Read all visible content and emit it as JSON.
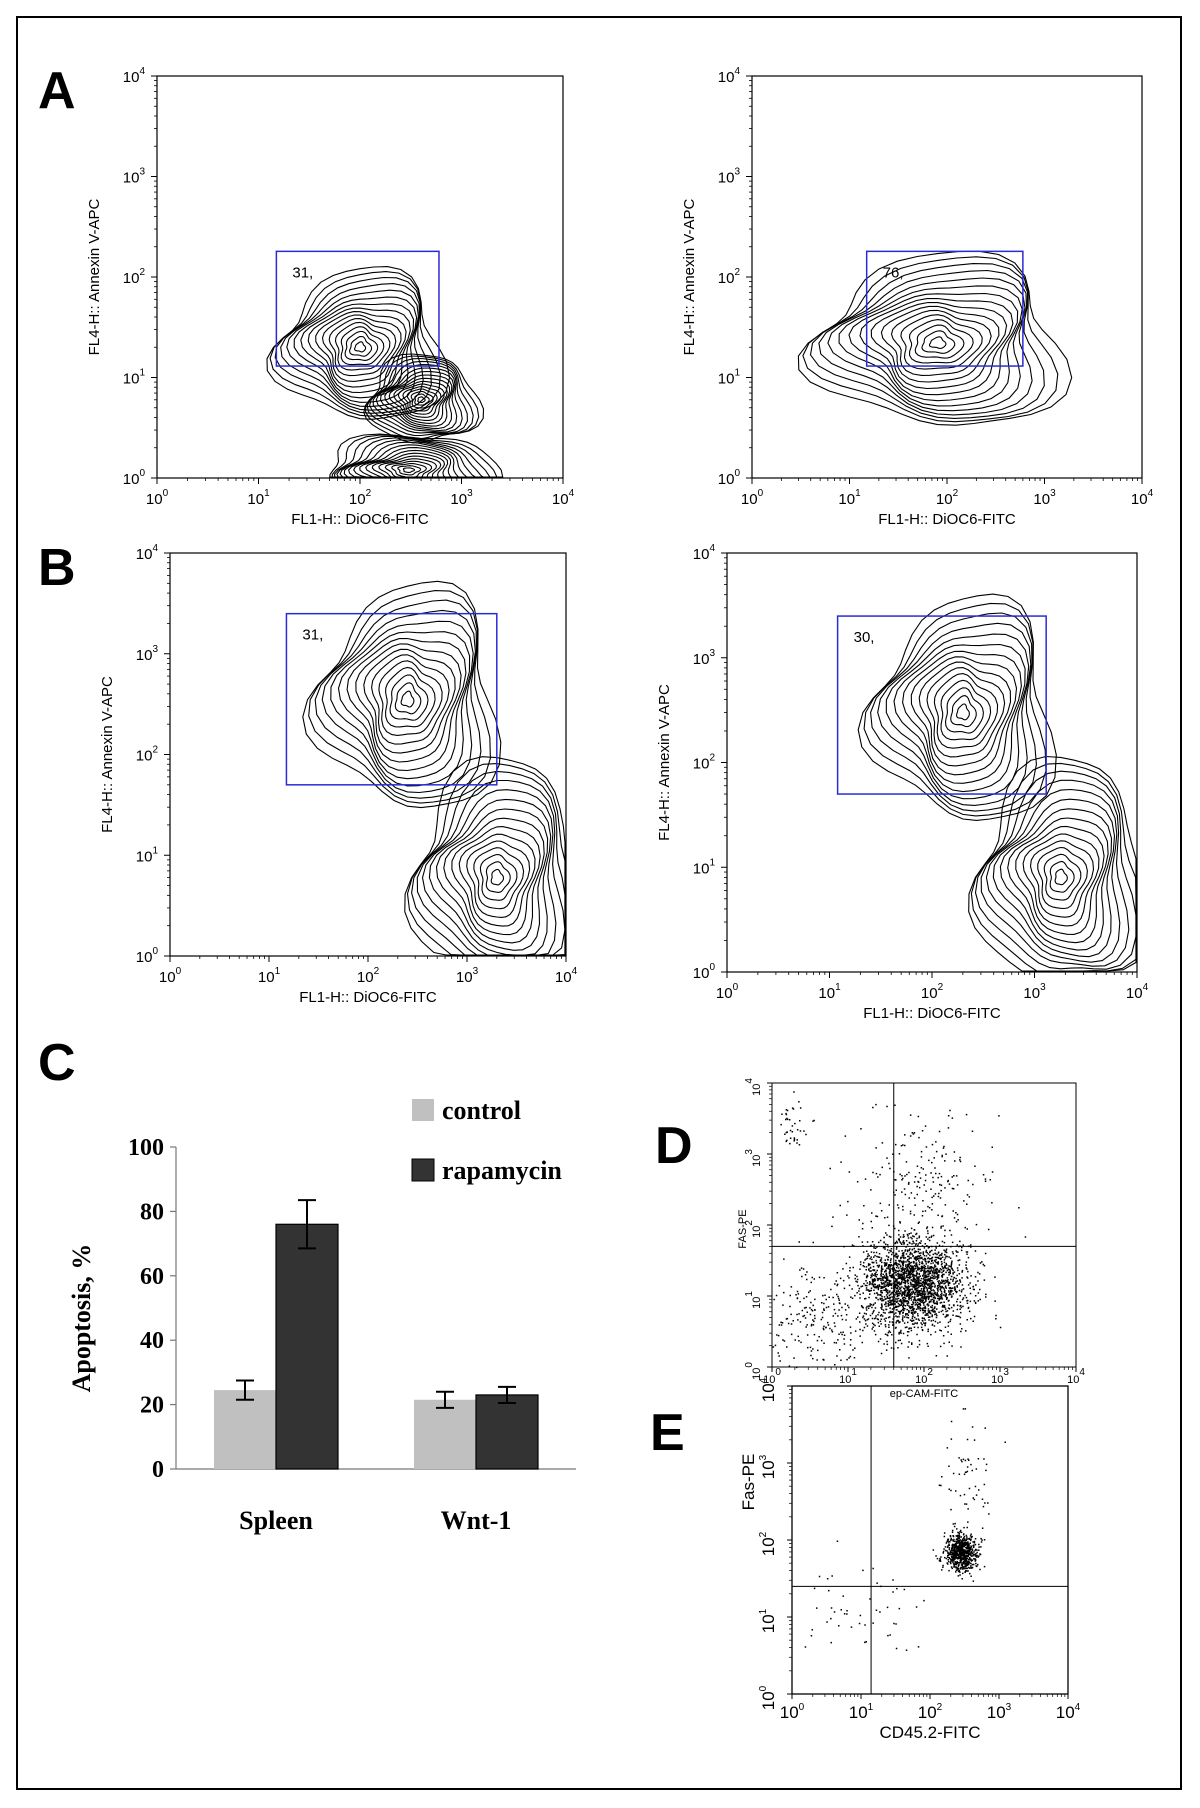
{
  "panel_letters": [
    "A",
    "B",
    "C",
    "D",
    "E"
  ],
  "chart_data": [
    {
      "id": "A-left",
      "type": "scatter",
      "title": "",
      "xlabel": "FL1-H:: DiOC6-FITC",
      "ylabel": "FL4-H:: Annexin V-APC",
      "xscale": "log",
      "yscale": "log",
      "xlim": [
        1,
        10000
      ],
      "ylim": [
        1,
        10000
      ],
      "x_ticks": [
        "10^0",
        "10^1",
        "10^2",
        "10^3",
        "10^4"
      ],
      "y_ticks": [
        "10^0",
        "10^1",
        "10^2",
        "10^3",
        "10^4"
      ],
      "gate": {
        "label": "31,",
        "x_range": [
          15,
          600
        ],
        "y_range": [
          13,
          180
        ]
      },
      "populations": [
        {
          "cx": 100,
          "cy": 20
        },
        {
          "cx": 400,
          "cy": 6
        },
        {
          "cx": 300,
          "cy": 1.2
        }
      ]
    },
    {
      "id": "A-right",
      "type": "scatter",
      "title": "",
      "xlabel": "FL1-H:: DiOC6-FITC",
      "ylabel": "FL4-H:: Annexin V-APC",
      "xscale": "log",
      "yscale": "log",
      "xlim": [
        1,
        10000
      ],
      "ylim": [
        1,
        10000
      ],
      "x_ticks": [
        "10^0",
        "10^1",
        "10^2",
        "10^3",
        "10^4"
      ],
      "y_ticks": [
        "10^0",
        "10^1",
        "10^2",
        "10^3",
        "10^4"
      ],
      "gate": {
        "label": "76,",
        "x_range": [
          15,
          600
        ],
        "y_range": [
          13,
          180
        ]
      },
      "populations": [
        {
          "cx": 80,
          "cy": 22
        }
      ]
    },
    {
      "id": "B-left",
      "type": "scatter",
      "title": "",
      "xlabel": "FL1-H:: DiOC6-FITC",
      "ylabel": "FL4-H:: Annexin V-APC",
      "xscale": "log",
      "yscale": "log",
      "xlim": [
        1,
        10000
      ],
      "ylim": [
        1,
        10000
      ],
      "x_ticks": [
        "10^0",
        "10^1",
        "10^2",
        "10^3",
        "10^4"
      ],
      "y_ticks": [
        "10^0",
        "10^1",
        "10^2",
        "10^3",
        "10^4"
      ],
      "gate": {
        "label": "31,",
        "x_range": [
          15,
          2000
        ],
        "y_range": [
          50,
          2500
        ]
      },
      "populations": [
        {
          "cx": 250,
          "cy": 350
        },
        {
          "cx": 2000,
          "cy": 6
        }
      ]
    },
    {
      "id": "B-right",
      "type": "scatter",
      "title": "",
      "xlabel": "FL1-H:: DiOC6-FITC",
      "ylabel": "FL4-H:: Annexin V-APC",
      "xscale": "log",
      "yscale": "log",
      "xlim": [
        1,
        10000
      ],
      "ylim": [
        1,
        10000
      ],
      "x_ticks": [
        "10^0",
        "10^1",
        "10^2",
        "10^3",
        "10^4"
      ],
      "y_ticks": [
        "10^0",
        "10^1",
        "10^2",
        "10^3",
        "10^4"
      ],
      "gate": {
        "label": "30,",
        "x_range": [
          12,
          1300
        ],
        "y_range": [
          50,
          2500
        ]
      },
      "populations": [
        {
          "cx": 200,
          "cy": 300
        },
        {
          "cx": 1800,
          "cy": 8
        }
      ]
    },
    {
      "id": "C",
      "type": "bar",
      "title": "",
      "categories": [
        "Spleen",
        "Wnt-1"
      ],
      "series": [
        {
          "name": "control",
          "color": "#c0c0c0",
          "values": [
            24.5,
            21.5
          ],
          "errors": [
            3,
            2.5
          ]
        },
        {
          "name": "rapamycin",
          "color": "#333333",
          "values": [
            76,
            23
          ],
          "errors": [
            7.5,
            2.5
          ]
        }
      ],
      "xlabel": "",
      "ylabel": "Apoptosis, %",
      "ylim": [
        0,
        100
      ],
      "y_ticks": [
        "0",
        "20",
        "40",
        "60",
        "80",
        "100"
      ],
      "legend": "top-right"
    },
    {
      "id": "D",
      "type": "scatter",
      "title": "",
      "xlabel": "ep-CAM-FITC",
      "ylabel": "FAS-PE",
      "xscale": "log",
      "yscale": "log",
      "xlim": [
        1,
        10000
      ],
      "ylim": [
        1,
        10000
      ],
      "x_ticks": [
        "10^0",
        "10^1",
        "10^2",
        "10^3",
        "10^4"
      ],
      "y_ticks": [
        "10^0",
        "10^1",
        "10^2",
        "10^3",
        "10^4"
      ],
      "quadrant": {
        "x": 40,
        "y": 50
      },
      "populations": [
        {
          "cx": 70,
          "cy": 15,
          "n": 2200,
          "sx": 0.35,
          "sy": 0.32
        },
        {
          "cx": 4,
          "cy": 5,
          "n": 250,
          "sx": 0.45,
          "sy": 0.4
        },
        {
          "cx": 80,
          "cy": 300,
          "n": 220,
          "sx": 0.5,
          "sy": 0.5
        },
        {
          "cx": 1.8,
          "cy": 2500,
          "n": 40,
          "sx": 0.12,
          "sy": 0.2
        }
      ]
    },
    {
      "id": "E",
      "type": "scatter",
      "title": "",
      "xlabel": "CD45.2-FITC",
      "ylabel": "Fas-PE",
      "xscale": "log",
      "yscale": "log",
      "xlim": [
        1,
        10000
      ],
      "ylim": [
        1,
        10000
      ],
      "x_ticks": [
        "10^0",
        "10^1",
        "10^2",
        "10^3",
        "10^4"
      ],
      "y_ticks": [
        "10^0",
        "10^1",
        "10^2",
        "10^3",
        "10^4"
      ],
      "quadrant": {
        "x": 14,
        "y": 25
      },
      "populations": [
        {
          "cx": 280,
          "cy": 70,
          "n": 700,
          "sx": 0.12,
          "sy": 0.12
        },
        {
          "cx": 350,
          "cy": 700,
          "n": 60,
          "sx": 0.18,
          "sy": 0.4
        },
        {
          "cx": 12,
          "cy": 12,
          "n": 50,
          "sx": 0.4,
          "sy": 0.3
        }
      ]
    }
  ]
}
